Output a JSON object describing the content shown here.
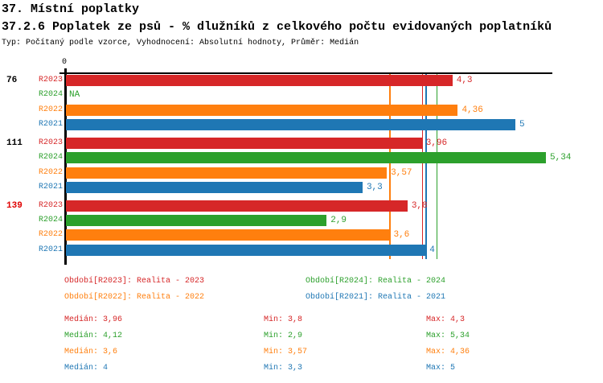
{
  "header": {
    "title1": "37. Místní poplatky",
    "title2": "37.2.6 Poplatek ze psů - % dlužníků z celkového počtu evidovaných poplatníků",
    "meta": "Typ: Počítaný podle vzorce, Vyhodnocení: Absolutní hodnoty, Průměr: Medián"
  },
  "colors": {
    "R2023": "#d62728",
    "R2024": "#2ca02c",
    "R2022": "#ff7f0e",
    "R2021": "#1f77b4",
    "highlight_group": "#e00000",
    "axis": "#000000"
  },
  "chart_data": {
    "type": "bar",
    "orientation": "horizontal",
    "origin_label": "0",
    "xlim": [
      0,
      5.41
    ],
    "grid": false,
    "groups": [
      {
        "label": "76",
        "highlight": false,
        "bars": [
          {
            "series": "R2023",
            "value": 4.3,
            "label": "4,3"
          },
          {
            "series": "R2024",
            "value": null,
            "label": "NA"
          },
          {
            "series": "R2022",
            "value": 4.36,
            "label": "4,36"
          },
          {
            "series": "R2021",
            "value": 5,
            "label": "5"
          }
        ]
      },
      {
        "label": "111",
        "highlight": false,
        "bars": [
          {
            "series": "R2023",
            "value": 3.96,
            "label": "3,96"
          },
          {
            "series": "R2024",
            "value": 5.34,
            "label": "5,34"
          },
          {
            "series": "R2022",
            "value": 3.57,
            "label": "3,57"
          },
          {
            "series": "R2021",
            "value": 3.3,
            "label": "3,3"
          }
        ]
      },
      {
        "label": "139",
        "highlight": true,
        "bars": [
          {
            "series": "R2023",
            "value": 3.8,
            "label": "3,8"
          },
          {
            "series": "R2024",
            "value": 2.9,
            "label": "2,9"
          },
          {
            "series": "R2022",
            "value": 3.6,
            "label": "3,6"
          },
          {
            "series": "R2021",
            "value": 4,
            "label": "4"
          }
        ]
      }
    ],
    "median_lines": [
      {
        "series": "R2022",
        "value": 3.6
      },
      {
        "series": "R2023",
        "value": 3.96
      },
      {
        "series": "R2021",
        "value": 4
      },
      {
        "series": "R2024",
        "value": 4.12
      }
    ]
  },
  "legend": [
    {
      "series": "R2023",
      "label": "Období[R2023]: Realita - 2023"
    },
    {
      "series": "R2024",
      "label": "Období[R2024]: Realita - 2024"
    },
    {
      "series": "R2022",
      "label": "Období[R2022]: Realita - 2022"
    },
    {
      "series": "R2021",
      "label": "Období[R2021]: Realita - 2021"
    }
  ],
  "stats": [
    {
      "series": "R2023",
      "median": "Medián: 3,96",
      "min": "Min: 3,8",
      "max": "Max: 4,3"
    },
    {
      "series": "R2024",
      "median": "Medián: 4,12",
      "min": "Min: 2,9",
      "max": "Max: 5,34"
    },
    {
      "series": "R2022",
      "median": "Medián: 3,6",
      "min": "Min: 3,57",
      "max": "Max: 4,36"
    },
    {
      "series": "R2021",
      "median": "Medián: 4",
      "min": "Min: 3,3",
      "max": "Max: 5"
    }
  ]
}
